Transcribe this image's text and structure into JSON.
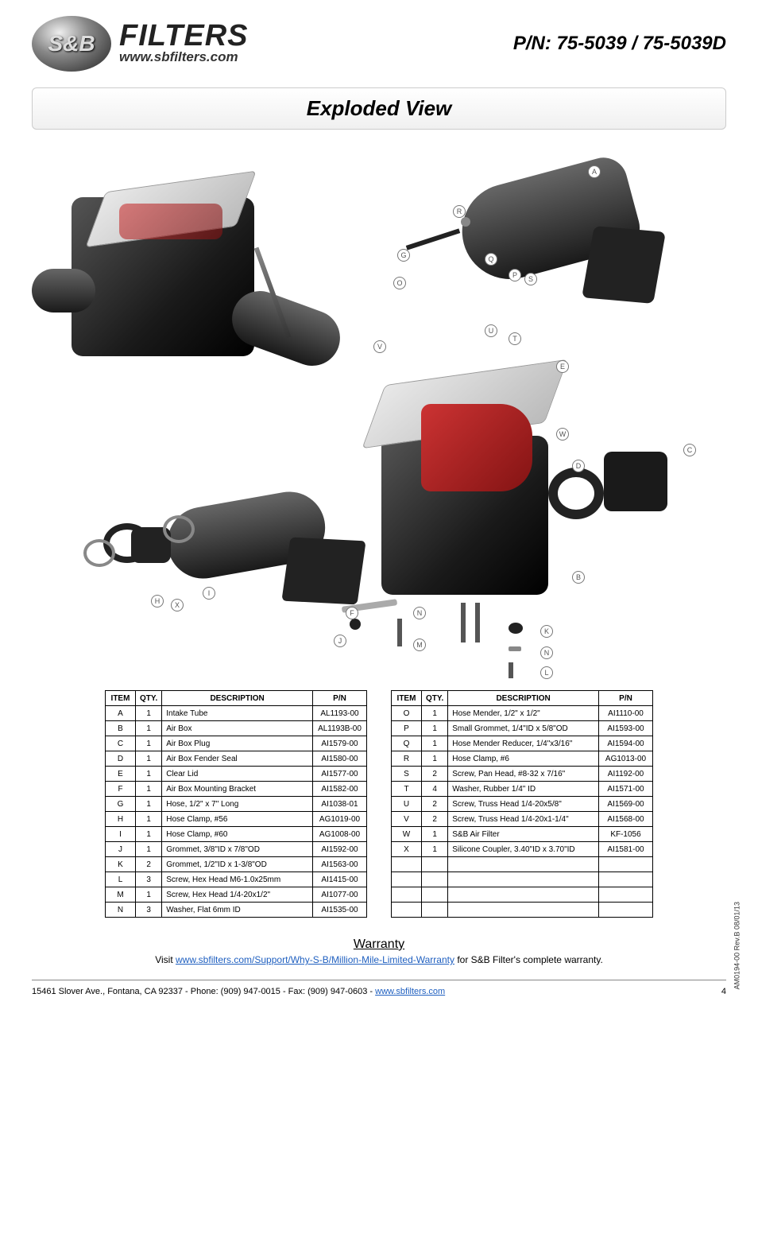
{
  "header": {
    "brand": "FILTERS",
    "url": "www.sbfilters.com",
    "emblem": "S&B",
    "part_no": "P/N: 75-5039 / 75-5039D"
  },
  "section_title": "Exploded View",
  "table_headers": {
    "item": "ITEM",
    "qty": "QTY.",
    "desc": "DESCRIPTION",
    "pn": "P/N"
  },
  "parts_left": [
    {
      "item": "A",
      "qty": "1",
      "desc": "Intake Tube",
      "pn": "AL1193-00"
    },
    {
      "item": "B",
      "qty": "1",
      "desc": "Air Box",
      "pn": "AL1193B-00"
    },
    {
      "item": "C",
      "qty": "1",
      "desc": "Air Box Plug",
      "pn": "AI1579-00"
    },
    {
      "item": "D",
      "qty": "1",
      "desc": "Air Box Fender Seal",
      "pn": "AI1580-00"
    },
    {
      "item": "E",
      "qty": "1",
      "desc": "Clear Lid",
      "pn": "AI1577-00"
    },
    {
      "item": "F",
      "qty": "1",
      "desc": "Air Box Mounting Bracket",
      "pn": "AI1582-00"
    },
    {
      "item": "G",
      "qty": "1",
      "desc": "Hose, 1/2\" x 7\" Long",
      "pn": "AI1038-01"
    },
    {
      "item": "H",
      "qty": "1",
      "desc": "Hose Clamp, #56",
      "pn": "AG1019-00"
    },
    {
      "item": "I",
      "qty": "1",
      "desc": "Hose Clamp, #60",
      "pn": "AG1008-00"
    },
    {
      "item": "J",
      "qty": "1",
      "desc": "Grommet, 3/8\"ID x 7/8\"OD",
      "pn": "AI1592-00"
    },
    {
      "item": "K",
      "qty": "2",
      "desc": "Grommet, 1/2\"ID x 1-3/8\"OD",
      "pn": "AI1563-00"
    },
    {
      "item": "L",
      "qty": "3",
      "desc": "Screw, Hex Head M6-1.0x25mm",
      "pn": "AI1415-00"
    },
    {
      "item": "M",
      "qty": "1",
      "desc": "Screw, Hex Head 1/4-20x1/2\"",
      "pn": "AI1077-00"
    },
    {
      "item": "N",
      "qty": "3",
      "desc": "Washer, Flat 6mm ID",
      "pn": "AI1535-00"
    }
  ],
  "parts_right": [
    {
      "item": "O",
      "qty": "1",
      "desc": "Hose Mender, 1/2\" x 1/2\"",
      "pn": "AI1110-00"
    },
    {
      "item": "P",
      "qty": "1",
      "desc": "Small Grommet, 1/4\"ID x 5/8\"OD",
      "pn": "AI1593-00"
    },
    {
      "item": "Q",
      "qty": "1",
      "desc": "Hose Mender Reducer, 1/4\"x3/16\"",
      "pn": "AI1594-00"
    },
    {
      "item": "R",
      "qty": "1",
      "desc": "Hose Clamp, #6",
      "pn": "AG1013-00"
    },
    {
      "item": "S",
      "qty": "2",
      "desc": "Screw, Pan Head, #8-32 x 7/16\"",
      "pn": "AI1192-00"
    },
    {
      "item": "T",
      "qty": "4",
      "desc": "Washer, Rubber 1/4\" ID",
      "pn": "AI1571-00"
    },
    {
      "item": "U",
      "qty": "2",
      "desc": "Screw, Truss Head 1/4-20x5/8\"",
      "pn": "AI1569-00"
    },
    {
      "item": "V",
      "qty": "2",
      "desc": "Screw, Truss Head 1/4-20x1-1/4\"",
      "pn": "AI1568-00"
    },
    {
      "item": "W",
      "qty": "1",
      "desc": "S&B Air Filter",
      "pn": "KF-1056"
    },
    {
      "item": "X",
      "qty": "1",
      "desc": "Silicone Coupler, 3.40\"ID x 3.70\"ID",
      "pn": "AI1581-00"
    }
  ],
  "blank_rows_right": 4,
  "revision": "AM0194-00 Rev.B 08/01/13",
  "warranty": {
    "title": "Warranty",
    "prefix": "Visit ",
    "link_text": "www.sbfilters.com/Support/Why-S-B/Million-Mile-Limited-Warranty",
    "suffix": " for S&B Filter's complete warranty."
  },
  "footer": {
    "address": "15461 Slover Ave., Fontana, CA 92337 - Phone: (909) 947-0015 - Fax: (909) 947-0603 - ",
    "link": "www.sbfilters.com",
    "page": "4"
  },
  "callouts": [
    "A",
    "B",
    "C",
    "D",
    "E",
    "F",
    "G",
    "H",
    "I",
    "J",
    "K",
    "L",
    "M",
    "N",
    "O",
    "P",
    "Q",
    "R",
    "S",
    "T",
    "U",
    "V",
    "W",
    "X"
  ]
}
